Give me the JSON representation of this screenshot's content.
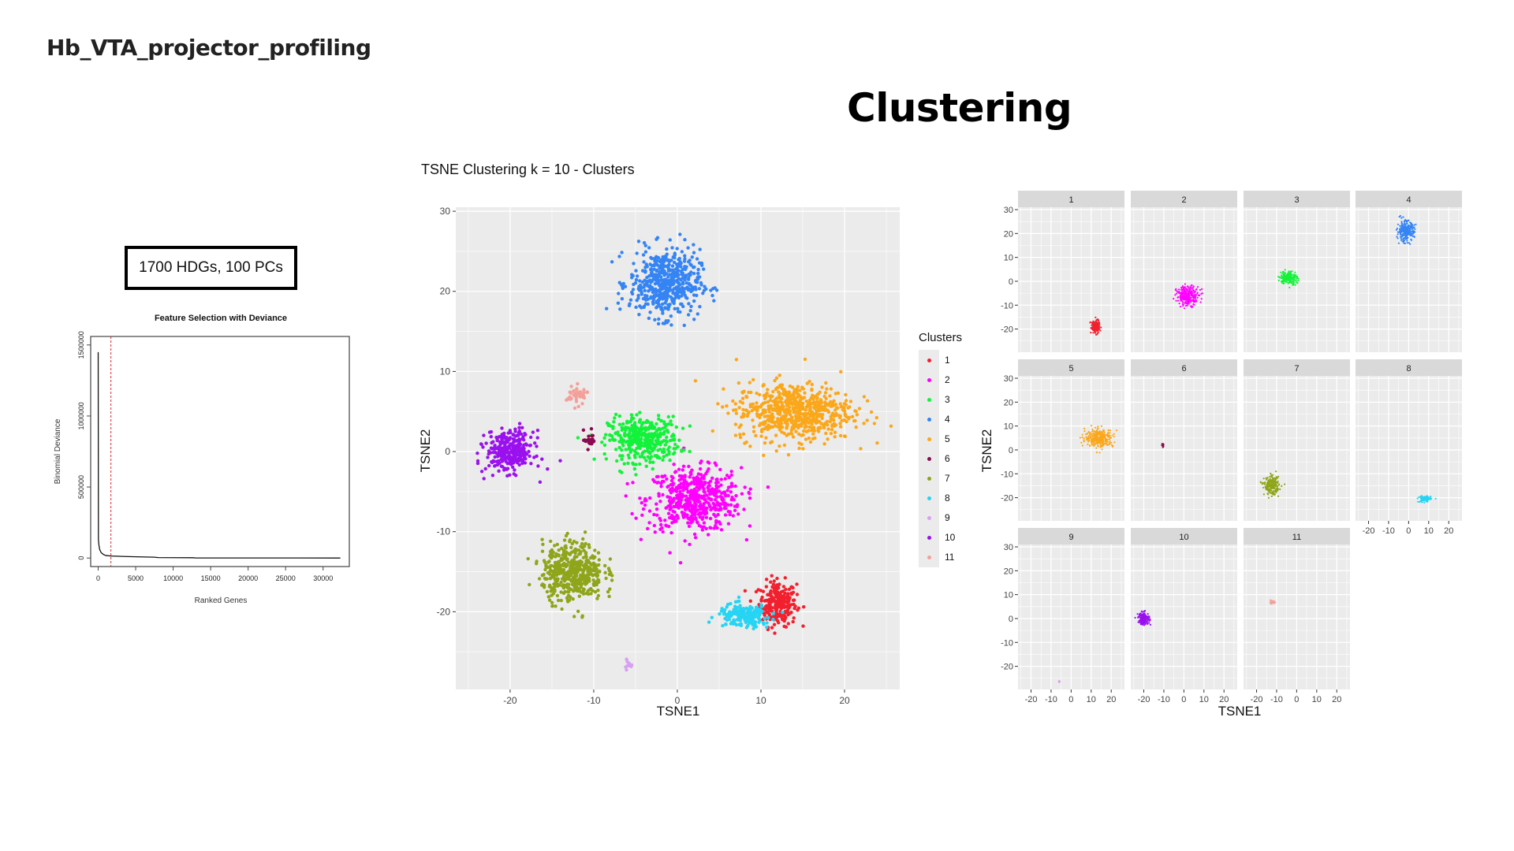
{
  "slide": {
    "deck_title": "Hb_VTA_projector_profiling",
    "title": "Clustering",
    "param_box": "1700 HDGs, 100 PCs"
  },
  "chart_data": [
    {
      "type": "line",
      "title": "Feature Selection with Deviance",
      "xlabel": "Ranked Genes",
      "ylabel": "Binomial Deviance",
      "xlim": [
        -1000,
        33500
      ],
      "ylim": [
        -60000,
        1560000
      ],
      "xticks": [
        "0",
        "5000",
        "10000",
        "15000",
        "20000",
        "25000",
        "30000"
      ],
      "xtick_values": [
        0,
        5000,
        10000,
        15000,
        20000,
        25000,
        30000
      ],
      "yticks": [
        "0",
        "500000",
        "1000000",
        "1500000"
      ],
      "ytick_values": [
        0,
        500000,
        1000000,
        1500000
      ],
      "cutoff_x": 1700,
      "cutoff_color": "#d62728",
      "grid": false,
      "points": [
        [
          1,
          1450000
        ],
        [
          30,
          130000
        ],
        [
          100,
          90000
        ],
        [
          200,
          60000
        ],
        [
          400,
          38000
        ],
        [
          700,
          25000
        ],
        [
          1000,
          18000
        ],
        [
          1700,
          14000
        ],
        [
          4000,
          10000
        ],
        [
          7500,
          6000
        ],
        [
          8000,
          3000
        ],
        [
          12700,
          2000
        ],
        [
          13000,
          500
        ],
        [
          32300,
          0
        ]
      ]
    },
    {
      "type": "scatter",
      "title": "TSNE Clustering k = 10 - Clusters",
      "xlabel": "TSNE1",
      "ylabel": "TSNE2",
      "xlim": [
        -26.5,
        26.6
      ],
      "ylim": [
        -29.7,
        30.5
      ],
      "xticks": [
        "-20",
        "-10",
        "0",
        "10",
        "20"
      ],
      "xtick_values": [
        -20,
        -10,
        0,
        10,
        20
      ],
      "yticks": [
        "-20",
        "-10",
        "0",
        "10",
        "20",
        "30"
      ],
      "ytick_values": [
        -20,
        -10,
        0,
        10,
        20,
        30
      ],
      "grid": true,
      "legend_title": "Clusters",
      "legend_position": "right",
      "clusters": [
        {
          "name": "1",
          "color": "#F2202E",
          "center": [
            12,
            -19
          ],
          "spread": [
            1.6,
            2.0
          ],
          "n": 260
        },
        {
          "name": "2",
          "color": "#FF00FF",
          "center": [
            2,
            -6
          ],
          "spread": [
            4.0,
            2.8
          ],
          "n": 520
        },
        {
          "name": "3",
          "color": "#13F23A",
          "center": [
            -4,
            1.5
          ],
          "spread": [
            3.0,
            2.0
          ],
          "n": 380
        },
        {
          "name": "4",
          "color": "#3584F4",
          "center": [
            -1.5,
            21
          ],
          "spread": [
            3.0,
            3.0
          ],
          "n": 520
        },
        {
          "name": "5",
          "color": "#FBA71A",
          "center": [
            14,
            5
          ],
          "spread": [
            5.0,
            2.6
          ],
          "n": 650
        },
        {
          "name": "6",
          "color": "#8B0A50",
          "center": [
            -10.5,
            1.5
          ],
          "spread": [
            0.5,
            0.8
          ],
          "n": 20
        },
        {
          "name": "7",
          "color": "#8FA51A",
          "center": [
            -12.5,
            -15
          ],
          "spread": [
            2.6,
            2.6
          ],
          "n": 480
        },
        {
          "name": "8",
          "color": "#26D4F3",
          "center": [
            8,
            -20.5
          ],
          "spread": [
            2.2,
            1.0
          ],
          "n": 200
        },
        {
          "name": "9",
          "color": "#D8A0F0",
          "center": [
            -6,
            -26.5
          ],
          "spread": [
            0.3,
            0.5
          ],
          "n": 12
        },
        {
          "name": "10",
          "color": "#9A10EE",
          "center": [
            -20,
            0
          ],
          "spread": [
            2.0,
            1.8
          ],
          "n": 320
        },
        {
          "name": "11",
          "color": "#F4A09A",
          "center": [
            -12,
            7
          ],
          "spread": [
            0.9,
            0.8
          ],
          "n": 50
        }
      ]
    },
    {
      "type": "scatter",
      "facets": [
        "1",
        "2",
        "3",
        "4",
        "5",
        "6",
        "7",
        "8",
        "9",
        "10",
        "11"
      ],
      "xlabel": "TSNE1",
      "ylabel": "TSNE2",
      "xlim": [
        -26.5,
        26.6
      ],
      "ylim": [
        -29.7,
        31
      ],
      "xticks": [
        "-20",
        "-10",
        "0",
        "10",
        "20"
      ],
      "xtick_values": [
        -20,
        -10,
        0,
        10,
        20
      ],
      "yticks": [
        "-20",
        "-10",
        "0",
        "10",
        "20",
        "30"
      ],
      "ytick_values": [
        -20,
        -10,
        0,
        10,
        20,
        30
      ],
      "grid": true
    }
  ]
}
